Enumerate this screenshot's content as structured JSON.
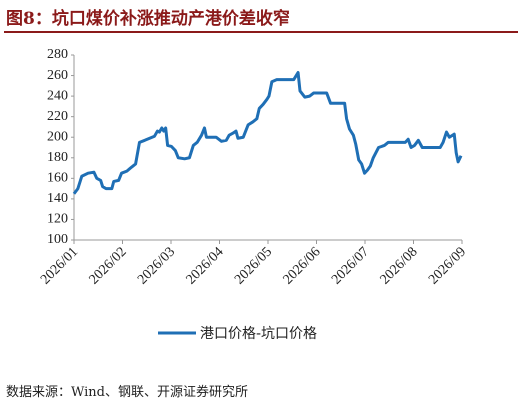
{
  "header": {
    "title": "图8：坑口煤价补涨推动产港价差收窄"
  },
  "chart_data": {
    "type": "line",
    "x": [
      1.0,
      1.08,
      1.16,
      1.29,
      1.41,
      1.47,
      1.55,
      1.59,
      1.66,
      1.78,
      1.82,
      1.92,
      1.98,
      2.09,
      2.19,
      2.27,
      2.35,
      2.46,
      2.56,
      2.66,
      2.72,
      2.76,
      2.81,
      2.85,
      2.89,
      2.93,
      3.01,
      3.09,
      3.15,
      3.28,
      3.38,
      3.46,
      3.54,
      3.63,
      3.69,
      3.73,
      3.83,
      3.93,
      4.04,
      4.14,
      4.2,
      4.28,
      4.34,
      4.38,
      4.49,
      4.59,
      4.69,
      4.77,
      4.82,
      4.9,
      4.98,
      5.02,
      5.08,
      5.18,
      5.35,
      5.53,
      5.62,
      5.66,
      5.76,
      5.86,
      5.94,
      6.09,
      6.21,
      6.29,
      6.46,
      6.58,
      6.62,
      6.68,
      6.76,
      6.81,
      6.87,
      6.93,
      6.99,
      7.05,
      7.11,
      7.17,
      7.28,
      7.4,
      7.48,
      7.64,
      7.83,
      7.89,
      7.95,
      8.02,
      8.1,
      8.18,
      8.38,
      8.55,
      8.61,
      8.68,
      8.74,
      8.84,
      8.88,
      8.92,
      8.98
    ],
    "series": [
      {
        "name": "港口价格-坑口价格",
        "color": "#1f6fb5",
        "values": [
          145,
          150,
          162,
          165,
          166,
          160,
          158,
          152,
          150,
          150,
          157,
          158,
          165,
          167,
          171,
          174,
          195,
          197,
          199,
          201,
          206,
          205,
          209,
          206,
          209,
          192,
          191,
          187,
          180,
          179,
          180,
          192,
          195,
          202,
          209,
          200,
          200,
          200,
          196,
          197,
          202,
          204,
          206,
          199,
          200,
          212,
          215,
          218,
          228,
          232,
          237,
          240,
          254,
          256,
          256,
          256,
          263,
          245,
          239,
          240,
          243,
          243,
          243,
          233,
          233,
          233,
          218,
          208,
          202,
          193,
          178,
          174,
          165,
          168,
          172,
          180,
          190,
          192,
          195,
          195,
          195,
          198,
          190,
          192,
          197,
          190,
          190,
          190,
          195,
          205,
          200,
          203,
          185,
          176,
          182
        ]
      }
    ],
    "xlim": [
      1,
      9
    ],
    "xticks": [
      {
        "value": 1,
        "label": "2026/01"
      },
      {
        "value": 2,
        "label": "2026/02"
      },
      {
        "value": 3,
        "label": "2026/03"
      },
      {
        "value": 4,
        "label": "2026/04"
      },
      {
        "value": 5,
        "label": "2026/05"
      },
      {
        "value": 6,
        "label": "2026/06"
      },
      {
        "value": 7,
        "label": "2026/07"
      },
      {
        "value": 8,
        "label": "2026/08"
      },
      {
        "value": 9,
        "label": "2026/09"
      }
    ],
    "ylim": [
      100,
      280
    ],
    "yticks": [
      100,
      120,
      140,
      160,
      180,
      200,
      220,
      240,
      260,
      280
    ],
    "grid": false
  },
  "source": "数据来源：Wind、钢联、开源证券研究所"
}
